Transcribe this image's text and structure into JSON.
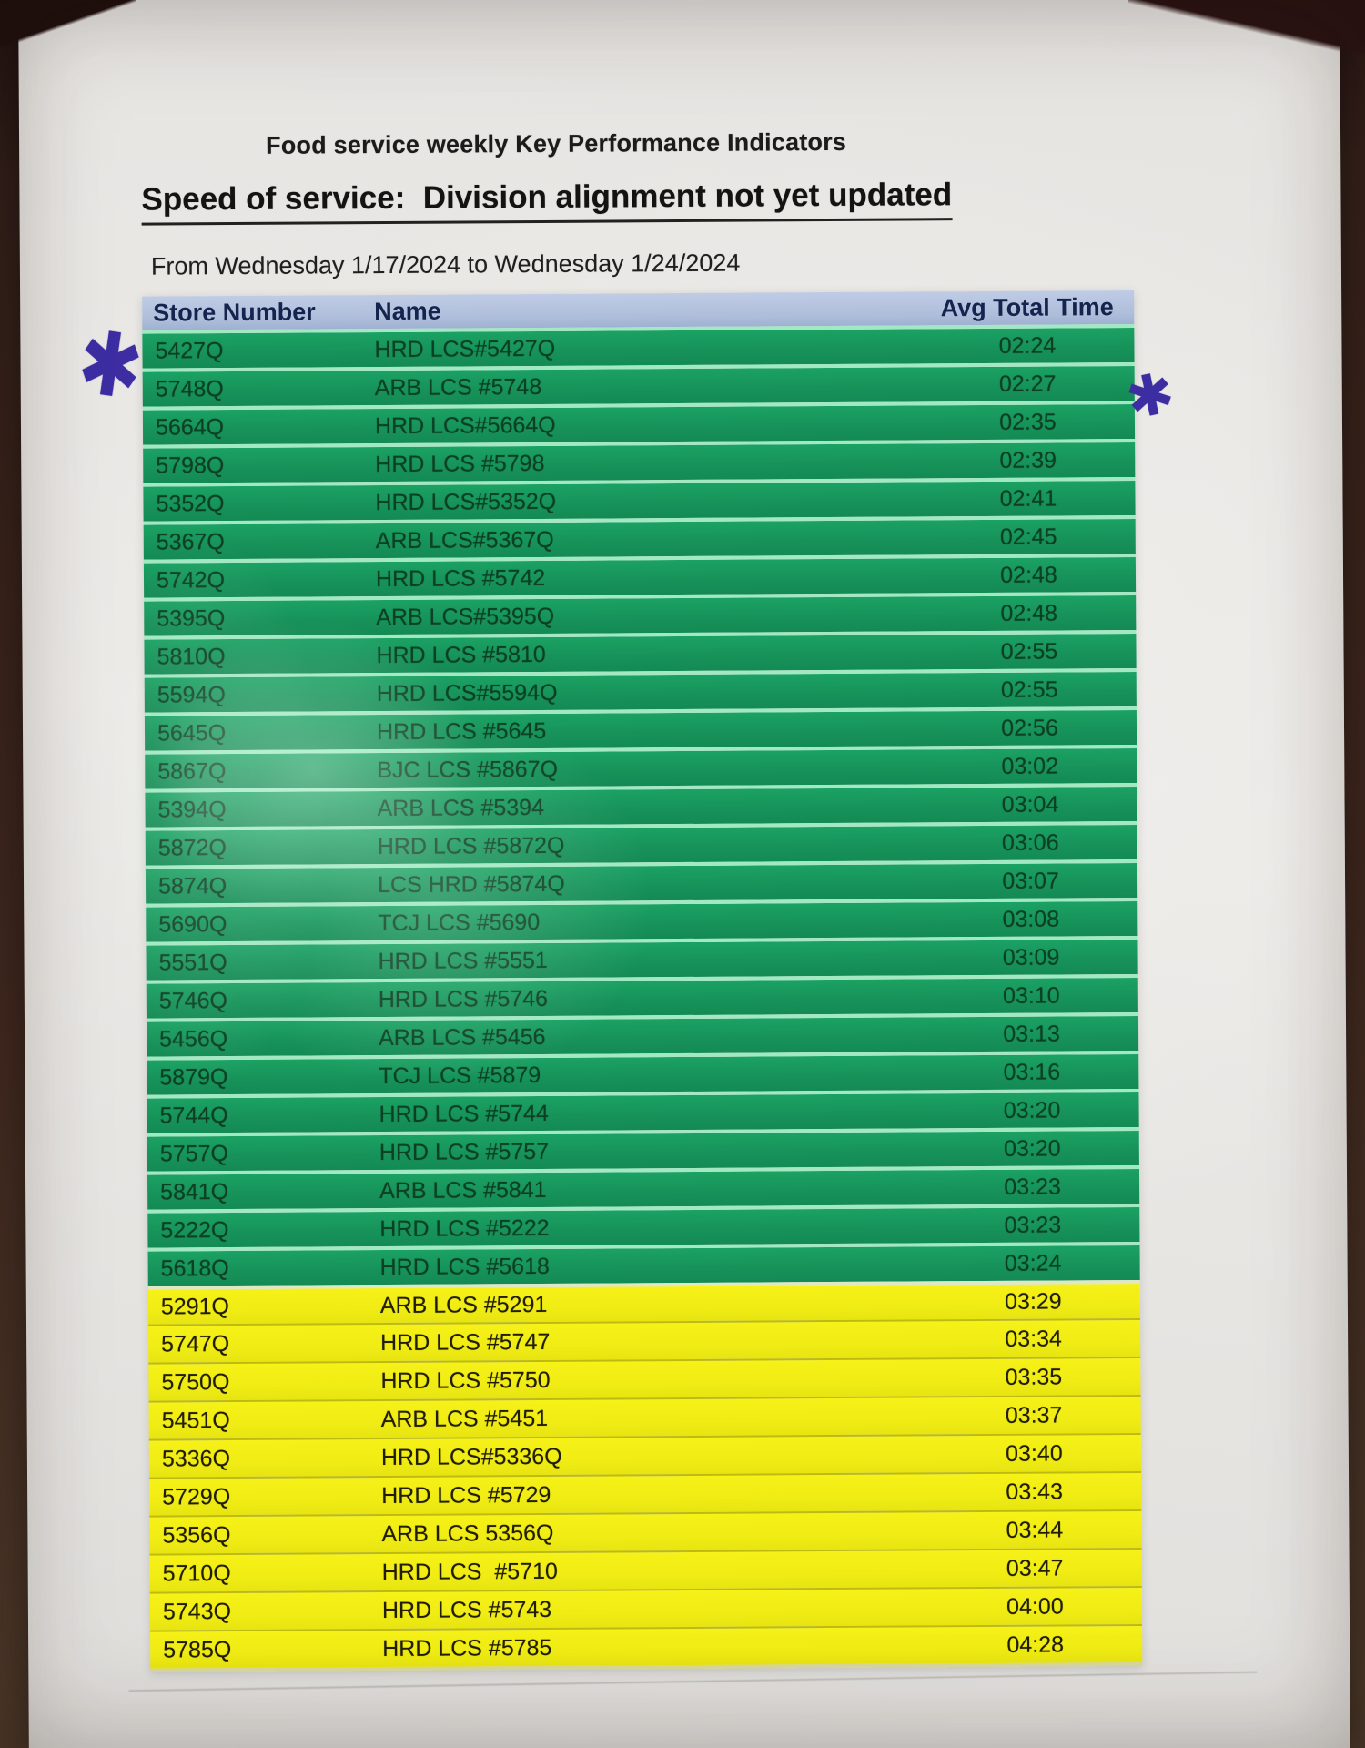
{
  "document": {
    "title": "Food service weekly Key Performance Indicators",
    "heading": "Speed of service:  Division alignment not yet updated",
    "date_range": "From Wednesday 1/17/2024 to Wednesday 1/24/2024",
    "annotations": {
      "left_asterisk": "✱",
      "right_asterisk": "✱",
      "ink_color": "#3d2da3"
    }
  },
  "table": {
    "columns": [
      "Store Number",
      "Name",
      "Avg Total Time"
    ],
    "colors": {
      "header_bg": "#aebdda",
      "header_text": "#14244e",
      "green_row_bg": "#17935a",
      "green_row_text": "#0c3f24",
      "green_separator": "#a2e8c3",
      "yellow_row_bg": "#f0ec14",
      "yellow_row_text": "#201d00",
      "yellow_separator": "#bdbb10"
    },
    "rows": [
      {
        "store": "5427Q",
        "name": "HRD LCS#5427Q",
        "time": "02:24",
        "band": "green"
      },
      {
        "store": "5748Q",
        "name": "ARB LCS #5748",
        "time": "02:27",
        "band": "green"
      },
      {
        "store": "5664Q",
        "name": "HRD LCS#5664Q",
        "time": "02:35",
        "band": "green"
      },
      {
        "store": "5798Q",
        "name": "HRD LCS #5798",
        "time": "02:39",
        "band": "green"
      },
      {
        "store": "5352Q",
        "name": "HRD LCS#5352Q",
        "time": "02:41",
        "band": "green"
      },
      {
        "store": "5367Q",
        "name": "ARB LCS#5367Q",
        "time": "02:45",
        "band": "green"
      },
      {
        "store": "5742Q",
        "name": "HRD LCS #5742",
        "time": "02:48",
        "band": "green"
      },
      {
        "store": "5395Q",
        "name": "ARB LCS#5395Q",
        "time": "02:48",
        "band": "green"
      },
      {
        "store": "5810Q",
        "name": "HRD LCS #5810",
        "time": "02:55",
        "band": "green"
      },
      {
        "store": "5594Q",
        "name": "HRD LCS#5594Q",
        "time": "02:55",
        "band": "green"
      },
      {
        "store": "5645Q",
        "name": "HRD LCS #5645",
        "time": "02:56",
        "band": "green"
      },
      {
        "store": "5867Q",
        "name": "BJC LCS #5867Q",
        "time": "03:02",
        "band": "green"
      },
      {
        "store": "5394Q",
        "name": "ARB LCS #5394",
        "time": "03:04",
        "band": "green"
      },
      {
        "store": "5872Q",
        "name": "HRD LCS #5872Q",
        "time": "03:06",
        "band": "green"
      },
      {
        "store": "5874Q",
        "name": "LCS HRD #5874Q",
        "time": "03:07",
        "band": "green"
      },
      {
        "store": "5690Q",
        "name": "TCJ LCS #5690",
        "time": "03:08",
        "band": "green"
      },
      {
        "store": "5551Q",
        "name": "HRD LCS #5551",
        "time": "03:09",
        "band": "green"
      },
      {
        "store": "5746Q",
        "name": "HRD LCS #5746",
        "time": "03:10",
        "band": "green"
      },
      {
        "store": "5456Q",
        "name": "ARB LCS #5456",
        "time": "03:13",
        "band": "green"
      },
      {
        "store": "5879Q",
        "name": "TCJ LCS #5879",
        "time": "03:16",
        "band": "green"
      },
      {
        "store": "5744Q",
        "name": "HRD LCS #5744",
        "time": "03:20",
        "band": "green"
      },
      {
        "store": "5757Q",
        "name": "HRD LCS #5757",
        "time": "03:20",
        "band": "green"
      },
      {
        "store": "5841Q",
        "name": "ARB LCS #5841",
        "time": "03:23",
        "band": "green"
      },
      {
        "store": "5222Q",
        "name": "HRD LCS #5222",
        "time": "03:23",
        "band": "green"
      },
      {
        "store": "5618Q",
        "name": "HRD LCS #5618",
        "time": "03:24",
        "band": "green"
      },
      {
        "store": "5291Q",
        "name": "ARB LCS #5291",
        "time": "03:29",
        "band": "yellow"
      },
      {
        "store": "5747Q",
        "name": "HRD LCS #5747",
        "time": "03:34",
        "band": "yellow"
      },
      {
        "store": "5750Q",
        "name": "HRD LCS #5750",
        "time": "03:35",
        "band": "yellow"
      },
      {
        "store": "5451Q",
        "name": "ARB LCS #5451",
        "time": "03:37",
        "band": "yellow"
      },
      {
        "store": "5336Q",
        "name": "HRD LCS#5336Q",
        "time": "03:40",
        "band": "yellow"
      },
      {
        "store": "5729Q",
        "name": "HRD LCS #5729",
        "time": "03:43",
        "band": "yellow"
      },
      {
        "store": "5356Q",
        "name": "ARB LCS 5356Q",
        "time": "03:44",
        "band": "yellow"
      },
      {
        "store": "5710Q",
        "name": "HRD LCS  #5710",
        "time": "03:47",
        "band": "yellow"
      },
      {
        "store": "5743Q",
        "name": "HRD LCS #5743",
        "time": "04:00",
        "band": "yellow"
      },
      {
        "store": "5785Q",
        "name": "HRD LCS #5785",
        "time": "04:28",
        "band": "yellow"
      }
    ]
  }
}
